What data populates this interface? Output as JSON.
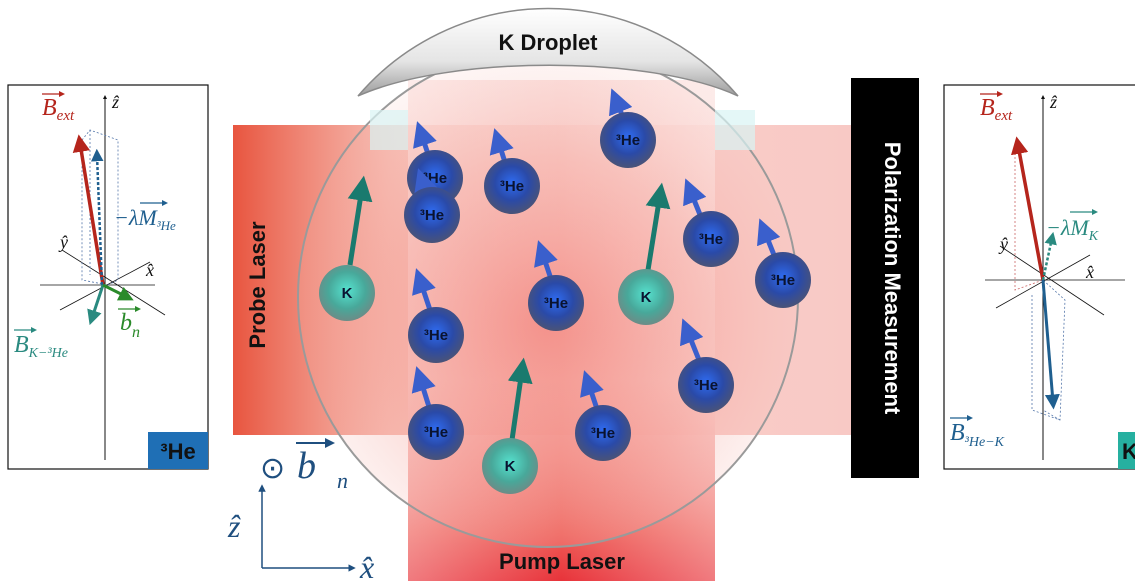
{
  "labels": {
    "droplet": "K Droplet",
    "probe": "Probe Laser",
    "pump": "Pump Laser",
    "measurement": "Polarization Measurement"
  },
  "left_panel": {
    "badge": "³He",
    "b_ext": "B",
    "b_ext_sub": "ext",
    "z_axis": "ẑ",
    "y_axis": "ŷ",
    "x_axis": "x̂",
    "magnetization": "−λM",
    "magnetization_sub": "³He",
    "b_k": "B",
    "b_k_sub": "K−³He",
    "b_n": "b",
    "b_n_sub": "n"
  },
  "right_panel": {
    "badge": "K",
    "b_ext": "B",
    "b_ext_sub": "ext",
    "z_axis": "ẑ",
    "y_axis": "ŷ",
    "x_axis": "x̂",
    "magnetization": "−λM",
    "magnetization_sub": "K",
    "b_he": "B",
    "b_he_sub": "³He−K"
  },
  "legend": {
    "odot": "⊙",
    "b": "b",
    "b_sub": "n",
    "z_axis": "ẑ",
    "x_axis": "x̂"
  },
  "atoms": {
    "he_label": "³He",
    "k_label": "K"
  },
  "colors": {
    "laser_red": "#e8333a",
    "he_atom": "#1f55c8",
    "k_atom": "#3fb8a6",
    "spin_blue": "#3a5fcc",
    "spin_teal": "#1a7a6e",
    "b_ext_red": "#b5251c",
    "magnet_blue": "#1f5f8f",
    "b_n_green": "#2a8a2a",
    "he_badge": "#1f6fb5",
    "k_badge": "#26b0a0"
  }
}
